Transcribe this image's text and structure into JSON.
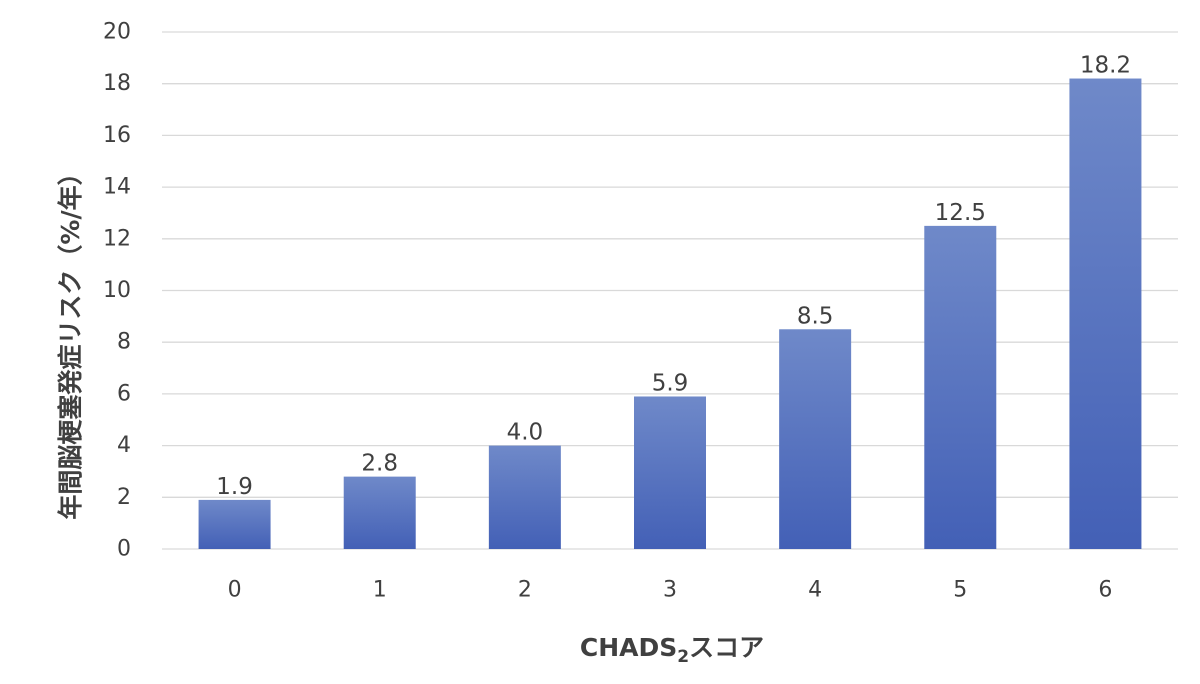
{
  "chart_data": {
    "type": "bar",
    "categories": [
      "0",
      "1",
      "2",
      "3",
      "4",
      "5",
      "6"
    ],
    "values": [
      1.9,
      2.8,
      4.0,
      5.9,
      8.5,
      12.5,
      18.2
    ],
    "data_labels": [
      "1.9",
      "2.8",
      "4.0",
      "5.9",
      "8.5",
      "12.5",
      "18.2"
    ],
    "yticks": [
      "0",
      "2",
      "4",
      "6",
      "8",
      "10",
      "12",
      "14",
      "16",
      "18",
      "20"
    ],
    "ylim": [
      0,
      20
    ],
    "ylabel": "年間脳梗塞発症リスク（%/年）",
    "xlabel_main": "CHADS",
    "xlabel_sub": "2",
    "xlabel_suffix": "スコア",
    "grid": true,
    "colors": {
      "bar_top": "#6f89c9",
      "bar_bottom": "#4360b6",
      "text": "#404040",
      "grid": "#d9d9d9"
    }
  }
}
